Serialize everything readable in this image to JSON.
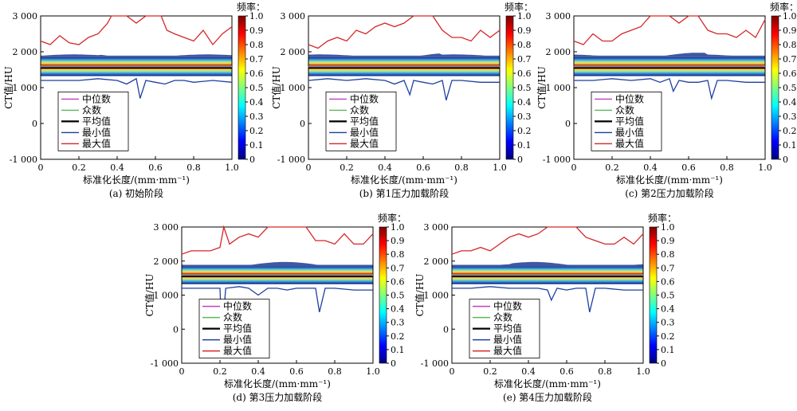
{
  "figure": {
    "axis_ylabel": "CT值/HU",
    "axis_xlabel": "标准化长度/(mm·mm⁻¹)",
    "colorbar_title": "频率：",
    "colorbar_ticks": [
      "0",
      "0.1",
      "0.2",
      "0.3",
      "0.4",
      "0.5",
      "0.6",
      "0.7",
      "0.8",
      "0.9",
      "1.0"
    ],
    "x_ticks": [
      "0",
      "0.2",
      "0.4",
      "0.6",
      "0.8",
      "1.0"
    ],
    "y_ticks": [
      "-1 000",
      "0",
      "1 000",
      "2 000",
      "3 000"
    ],
    "legend": [
      {
        "label": "中位数",
        "color": "#c040c0"
      },
      {
        "label": "众数",
        "color": "#5cb85c"
      },
      {
        "label": "平均值",
        "color": "#000000"
      },
      {
        "label": "最小值",
        "color": "#1f3f9f"
      },
      {
        "label": "最大值",
        "color": "#d62728"
      }
    ],
    "colormap": [
      "#00007f",
      "#0000ff",
      "#007fff",
      "#00ffff",
      "#7fff7f",
      "#ffff00",
      "#ff7f00",
      "#ff0000",
      "#7f0000"
    ],
    "captions": [
      "(a) 初始阶段",
      "(b) 第1压力加载阶段",
      "(c) 第2压力加载阶段",
      "(d) 第3压力加载阶段",
      "(e) 第4压力加载阶段"
    ]
  },
  "chart_data": [
    {
      "type": "line",
      "title": "(a) 初始阶段",
      "xlabel": "标准化长度/(mm·mm⁻¹)",
      "ylabel": "CT值/HU",
      "xlim": [
        0,
        1
      ],
      "ylim": [
        -1000,
        3000
      ],
      "series": [
        {
          "name": "最大值",
          "x": [
            0,
            0.05,
            0.1,
            0.15,
            0.2,
            0.25,
            0.3,
            0.35,
            0.37,
            0.4,
            0.45,
            0.5,
            0.55,
            0.6,
            0.63,
            0.66,
            0.7,
            0.75,
            0.8,
            0.85,
            0.9,
            0.95,
            1.0
          ],
          "values": [
            2300,
            2200,
            2450,
            2250,
            2200,
            2400,
            2500,
            2800,
            3050,
            3050,
            3050,
            2800,
            3050,
            3050,
            3050,
            2600,
            2500,
            2400,
            2300,
            2600,
            2200,
            2500,
            2700
          ]
        },
        {
          "name": "最小值",
          "x": [
            0,
            0.1,
            0.2,
            0.3,
            0.4,
            0.45,
            0.5,
            0.52,
            0.55,
            0.6,
            0.65,
            0.7,
            0.75,
            0.8,
            0.9,
            1.0
          ],
          "values": [
            1200,
            1200,
            1200,
            1250,
            1200,
            1100,
            1250,
            700,
            1200,
            1150,
            1100,
            1200,
            1200,
            1150,
            1200,
            1150
          ]
        },
        {
          "name": "平均值",
          "x": [
            0,
            1
          ],
          "values": [
            1550,
            1550
          ]
        },
        {
          "name": "中位数",
          "x": [
            0,
            1
          ],
          "values": [
            1580,
            1580
          ]
        },
        {
          "name": "众数",
          "x": [
            0,
            1
          ],
          "values": [
            1600,
            1600
          ]
        }
      ]
    },
    {
      "type": "line",
      "title": "(b) 第1压力加载阶段",
      "xlabel": "标准化长度/(mm·mm⁻¹)",
      "ylabel": "CT值/HU",
      "xlim": [
        0,
        1
      ],
      "ylim": [
        -1000,
        3000
      ],
      "series": [
        {
          "name": "最大值",
          "x": [
            0,
            0.05,
            0.1,
            0.15,
            0.2,
            0.25,
            0.3,
            0.35,
            0.4,
            0.45,
            0.5,
            0.55,
            0.6,
            0.65,
            0.7,
            0.75,
            0.8,
            0.85,
            0.9,
            0.95,
            1.0
          ],
          "values": [
            2200,
            2100,
            2300,
            2400,
            2300,
            2600,
            2500,
            2700,
            2800,
            2700,
            2800,
            3050,
            3050,
            3050,
            2600,
            2400,
            2400,
            2300,
            2600,
            2400,
            2600
          ]
        },
        {
          "name": "最小值",
          "x": [
            0,
            0.1,
            0.2,
            0.3,
            0.4,
            0.45,
            0.5,
            0.53,
            0.55,
            0.6,
            0.65,
            0.7,
            0.72,
            0.75,
            0.8,
            0.9,
            1.0
          ],
          "values": [
            1200,
            1250,
            1200,
            1250,
            1200,
            1100,
            1200,
            800,
            1200,
            1150,
            1100,
            1200,
            650,
            1200,
            1200,
            1150,
            1150
          ]
        },
        {
          "name": "平均值",
          "x": [
            0,
            1
          ],
          "values": [
            1550,
            1550
          ]
        },
        {
          "name": "中位数",
          "x": [
            0,
            1
          ],
          "values": [
            1580,
            1580
          ]
        },
        {
          "name": "众数",
          "x": [
            0,
            1
          ],
          "values": [
            1600,
            1600
          ]
        }
      ]
    },
    {
      "type": "line",
      "title": "(c) 第2压力加载阶段",
      "xlabel": "标准化长度/(mm·mm⁻¹)",
      "ylabel": "CT值/HU",
      "xlim": [
        0,
        1
      ],
      "ylim": [
        -1000,
        3000
      ],
      "series": [
        {
          "name": "最大值",
          "x": [
            0,
            0.05,
            0.1,
            0.15,
            0.2,
            0.25,
            0.3,
            0.35,
            0.4,
            0.45,
            0.5,
            0.55,
            0.6,
            0.65,
            0.7,
            0.75,
            0.8,
            0.85,
            0.9,
            0.95,
            1.0
          ],
          "values": [
            2300,
            2200,
            2500,
            2300,
            2300,
            2500,
            2600,
            2700,
            3000,
            3050,
            3050,
            2800,
            3050,
            3050,
            2600,
            2500,
            2500,
            2400,
            2600,
            2400,
            2900
          ]
        },
        {
          "name": "最小值",
          "x": [
            0,
            0.1,
            0.2,
            0.3,
            0.4,
            0.45,
            0.5,
            0.52,
            0.55,
            0.6,
            0.65,
            0.7,
            0.72,
            0.75,
            0.8,
            0.9,
            1.0
          ],
          "values": [
            1200,
            1200,
            1250,
            1200,
            1250,
            1150,
            1250,
            900,
            1200,
            1150,
            1150,
            1200,
            700,
            1200,
            1200,
            1150,
            1150
          ]
        },
        {
          "name": "平均值",
          "x": [
            0,
            1
          ],
          "values": [
            1550,
            1550
          ]
        },
        {
          "name": "中位数",
          "x": [
            0,
            1
          ],
          "values": [
            1580,
            1580
          ]
        },
        {
          "name": "众数",
          "x": [
            0,
            1
          ],
          "values": [
            1600,
            1600
          ]
        }
      ]
    },
    {
      "type": "line",
      "title": "(d) 第3压力加载阶段",
      "xlabel": "标准化长度/(mm·mm⁻¹)",
      "ylabel": "CT值/HU",
      "xlim": [
        0,
        1
      ],
      "ylim": [
        -1000,
        3000
      ],
      "series": [
        {
          "name": "最大值",
          "x": [
            0,
            0.05,
            0.1,
            0.15,
            0.2,
            0.22,
            0.25,
            0.3,
            0.35,
            0.4,
            0.45,
            0.5,
            0.55,
            0.6,
            0.65,
            0.7,
            0.75,
            0.8,
            0.85,
            0.9,
            0.95,
            1.0
          ],
          "values": [
            2200,
            2300,
            2300,
            2300,
            2400,
            3000,
            2500,
            2700,
            2800,
            2700,
            3000,
            3050,
            3050,
            3050,
            3050,
            2600,
            2600,
            2500,
            2800,
            2500,
            2500,
            2800
          ]
        },
        {
          "name": "最小值",
          "x": [
            0,
            0.1,
            0.2,
            0.21,
            0.23,
            0.3,
            0.35,
            0.4,
            0.45,
            0.5,
            0.55,
            0.6,
            0.65,
            0.7,
            0.72,
            0.75,
            0.8,
            0.9,
            1.0
          ],
          "values": [
            1200,
            1200,
            1200,
            -200,
            1200,
            1250,
            1200,
            1000,
            1200,
            1200,
            1150,
            1200,
            1200,
            1200,
            500,
            1200,
            1200,
            1150,
            1150
          ]
        },
        {
          "name": "平均值",
          "x": [
            0,
            1
          ],
          "values": [
            1550,
            1550
          ]
        },
        {
          "name": "中位数",
          "x": [
            0,
            1
          ],
          "values": [
            1580,
            1580
          ]
        },
        {
          "name": "众数",
          "x": [
            0,
            1
          ],
          "values": [
            1600,
            1600
          ]
        }
      ]
    },
    {
      "type": "line",
      "title": "(e) 第4压力加载阶段",
      "xlabel": "标准化长度/(mm·mm⁻¹)",
      "ylabel": "CT值/HU",
      "xlim": [
        0,
        1
      ],
      "ylim": [
        -1000,
        3000
      ],
      "series": [
        {
          "name": "最大值",
          "x": [
            0,
            0.05,
            0.1,
            0.15,
            0.2,
            0.25,
            0.3,
            0.35,
            0.4,
            0.45,
            0.5,
            0.55,
            0.6,
            0.65,
            0.7,
            0.75,
            0.8,
            0.85,
            0.9,
            0.95,
            1.0
          ],
          "values": [
            2200,
            2300,
            2300,
            2400,
            2300,
            2500,
            2700,
            2800,
            2700,
            2800,
            3050,
            3050,
            3050,
            3050,
            2700,
            2600,
            2500,
            2500,
            2700,
            2500,
            2800
          ]
        },
        {
          "name": "最小值",
          "x": [
            0,
            0.1,
            0.2,
            0.3,
            0.4,
            0.45,
            0.5,
            0.52,
            0.55,
            0.6,
            0.65,
            0.7,
            0.72,
            0.75,
            0.8,
            0.9,
            1.0
          ],
          "values": [
            1200,
            1200,
            1250,
            1200,
            1200,
            1200,
            1150,
            850,
            1200,
            1150,
            1200,
            1200,
            500,
            1200,
            1200,
            1150,
            1150
          ]
        },
        {
          "name": "平均值",
          "x": [
            0,
            1
          ],
          "values": [
            1550,
            1550
          ]
        },
        {
          "name": "中位数",
          "x": [
            0,
            1
          ],
          "values": [
            1580,
            1580
          ]
        },
        {
          "name": "众数",
          "x": [
            0,
            1
          ],
          "values": [
            1600,
            1600
          ]
        }
      ]
    }
  ]
}
